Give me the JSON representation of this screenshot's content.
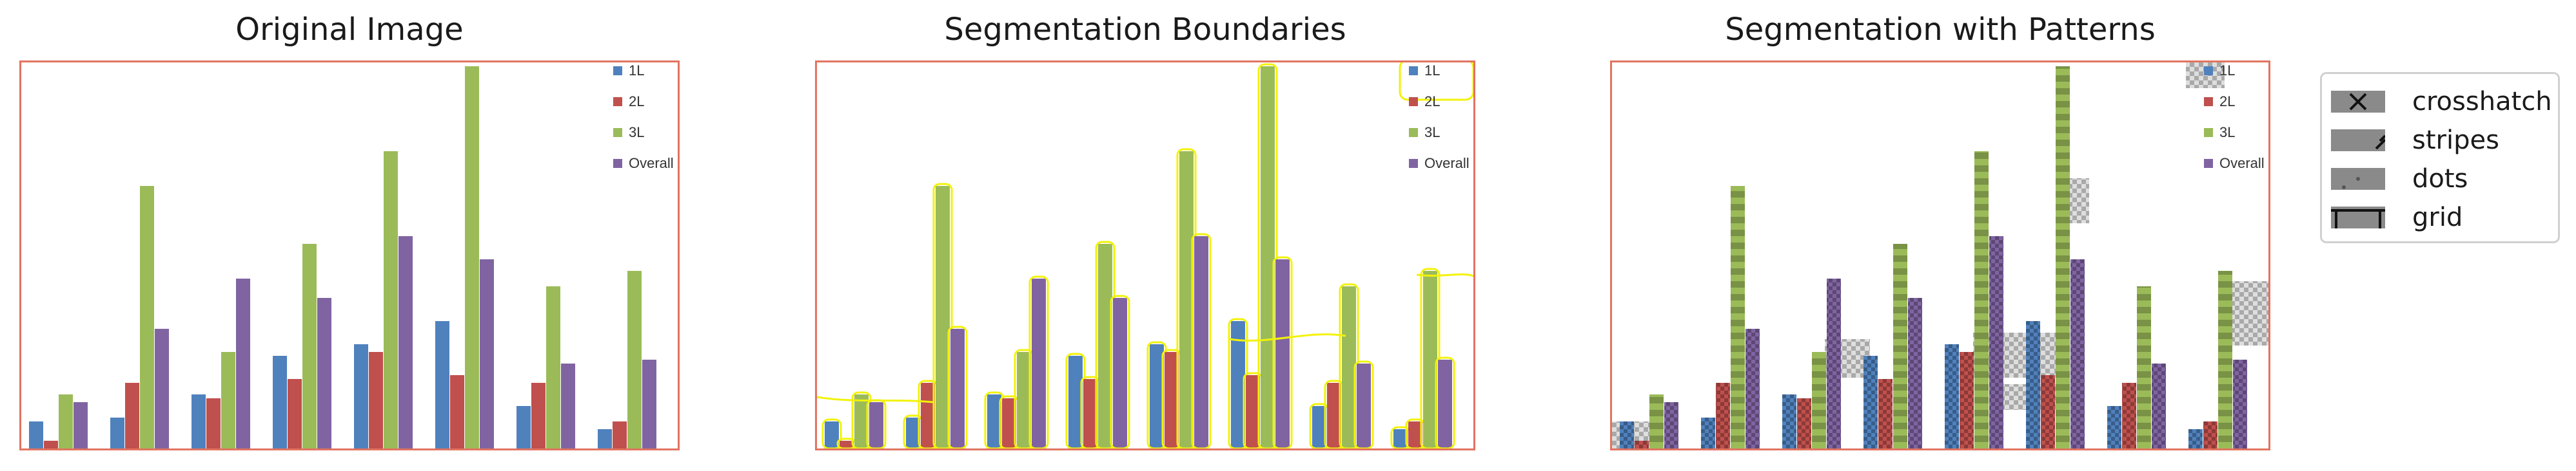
{
  "panels": [
    {
      "title": "Original Image"
    },
    {
      "title": "Segmentation Boundaries"
    },
    {
      "title": "Segmentation with Patterns"
    }
  ],
  "pattern_legend": {
    "items": [
      {
        "label": "crosshatch",
        "pattern": "crosshatch"
      },
      {
        "label": "stripes",
        "pattern": "stripes"
      },
      {
        "label": "dots",
        "pattern": "dots"
      },
      {
        "label": "grid",
        "pattern": "grid"
      }
    ]
  },
  "chart_data": {
    "type": "bar",
    "title": "",
    "xlabel": "",
    "ylabel": "",
    "ylim": [
      0,
      100
    ],
    "categories": [
      "",
      "",
      "",
      "",
      "",
      "",
      "",
      ""
    ],
    "series": [
      {
        "name": "1L",
        "color": "#4f81bd",
        "values": [
          7,
          8,
          14,
          24,
          27,
          33,
          11,
          5
        ]
      },
      {
        "name": "2L",
        "color": "#c0504d",
        "values": [
          2,
          17,
          13,
          18,
          25,
          19,
          17,
          7
        ]
      },
      {
        "name": "3L",
        "color": "#9bbb59",
        "values": [
          14,
          68,
          25,
          53,
          77,
          99,
          42,
          46
        ]
      },
      {
        "name": "Overall",
        "color": "#8064a2",
        "values": [
          12,
          31,
          44,
          39,
          55,
          49,
          22,
          23
        ]
      }
    ],
    "legend_position": "top-right"
  }
}
